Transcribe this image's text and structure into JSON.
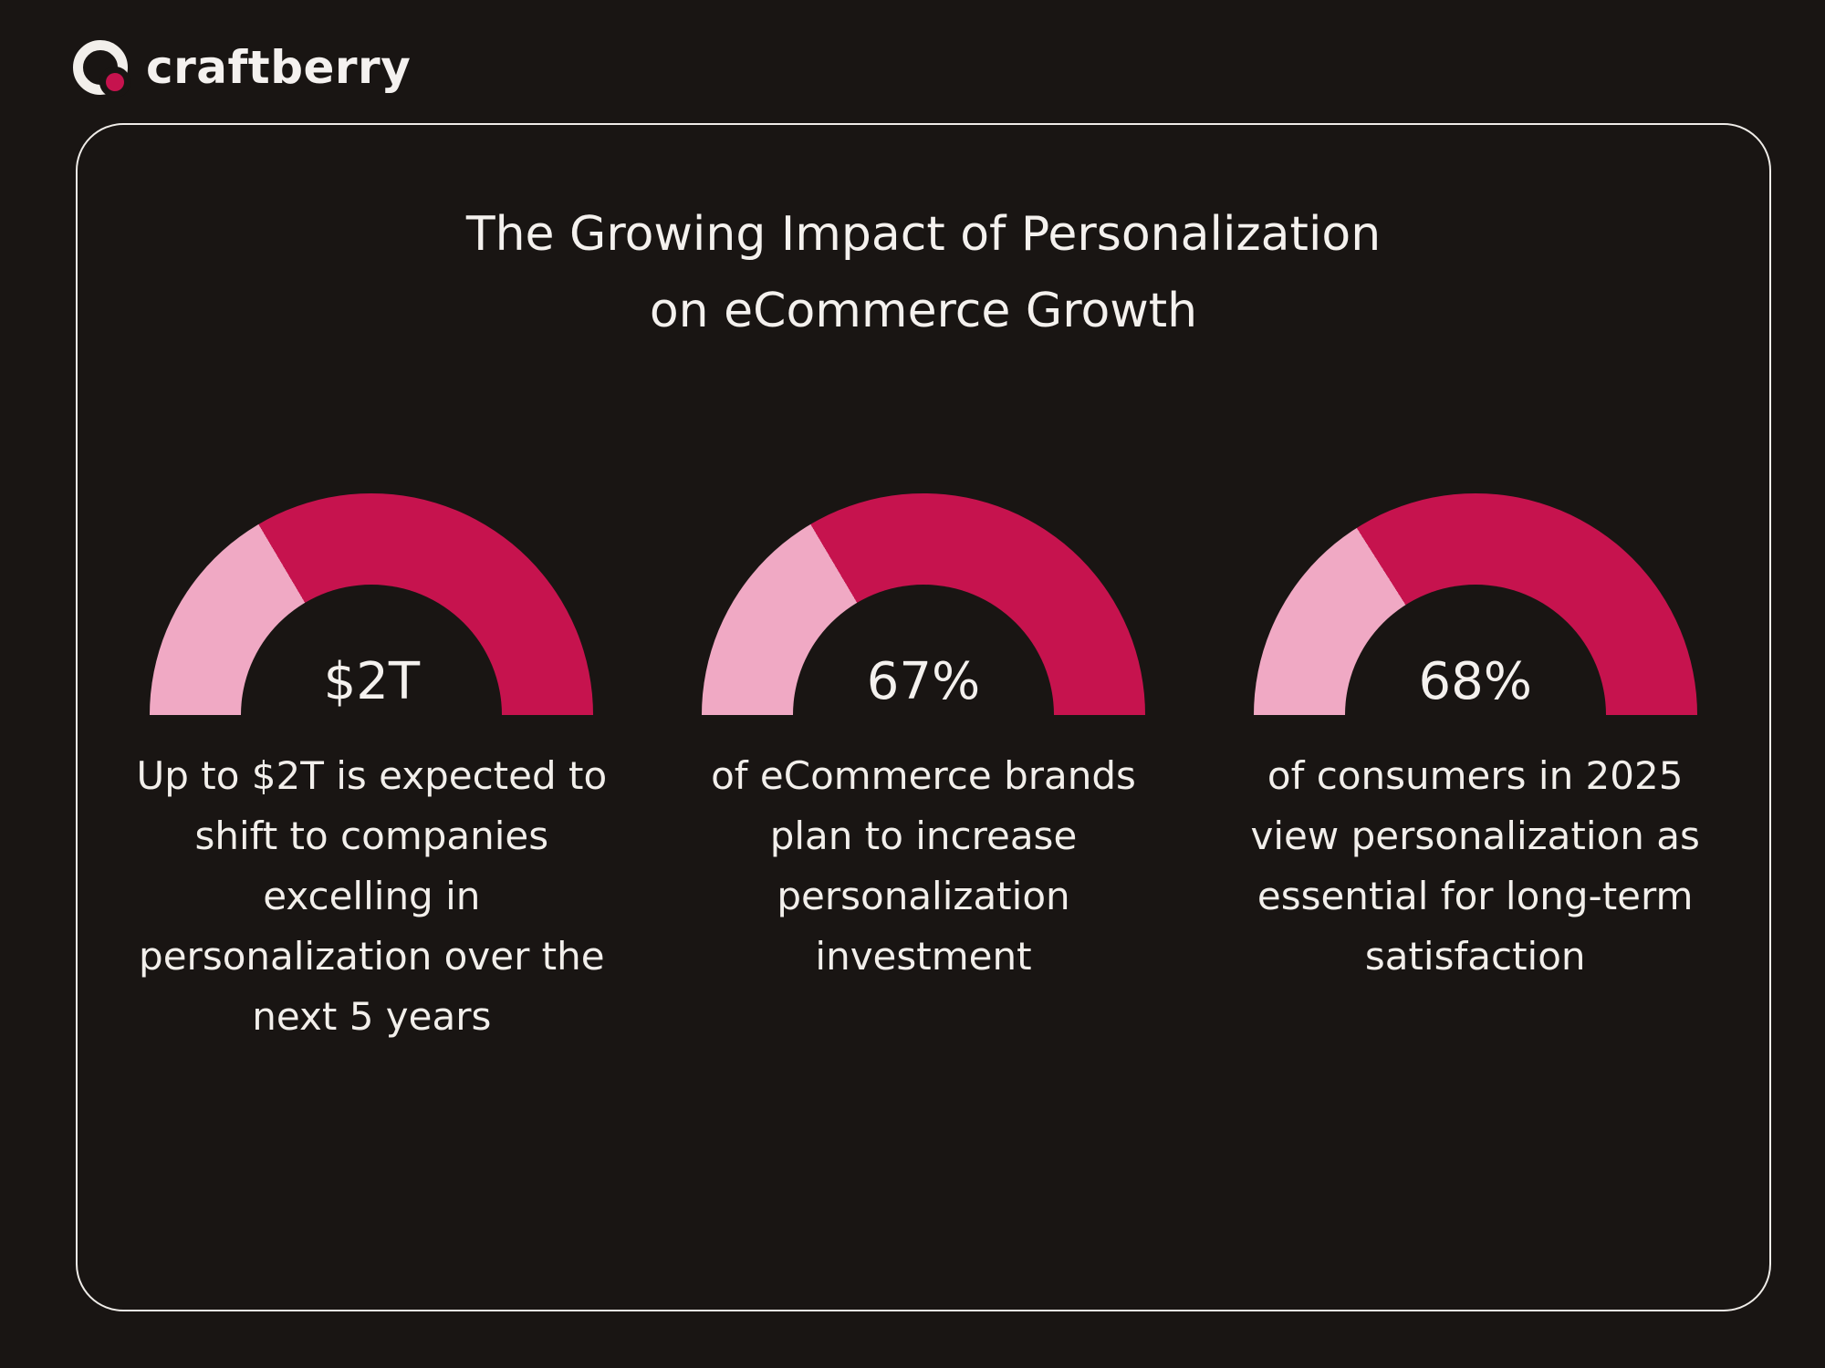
{
  "logo": {
    "text": "craftberry"
  },
  "card": {
    "title_line1": "The Growing Impact of Personalization",
    "title_line2": "on eCommerce Growth"
  },
  "colors": {
    "background": "#191513",
    "crimson": "#c6134e",
    "pink": "#f0a9c4",
    "text": "#f2efeb",
    "card_border": "#efece8"
  },
  "chart_data": [
    {
      "type": "pie",
      "variant": "half-donut-gauge",
      "value_label": "$2T",
      "fill_pct": 67,
      "segment_colors": {
        "filled": "#c6134e",
        "remainder": "#f0a9c4"
      },
      "caption": "Up to $2T is expected to shift to companies excelling in personalization over the next 5 years"
    },
    {
      "type": "pie",
      "variant": "half-donut-gauge",
      "value_label": "67%",
      "fill_pct": 67,
      "segment_colors": {
        "filled": "#c6134e",
        "remainder": "#f0a9c4"
      },
      "caption": "of eCommerce brands plan to increase personalization investment"
    },
    {
      "type": "pie",
      "variant": "half-donut-gauge",
      "value_label": "68%",
      "fill_pct": 68,
      "segment_colors": {
        "filled": "#c6134e",
        "remainder": "#f0a9c4"
      },
      "caption": "of consumers in 2025 view personalization as essential for long-term satisfaction"
    }
  ]
}
